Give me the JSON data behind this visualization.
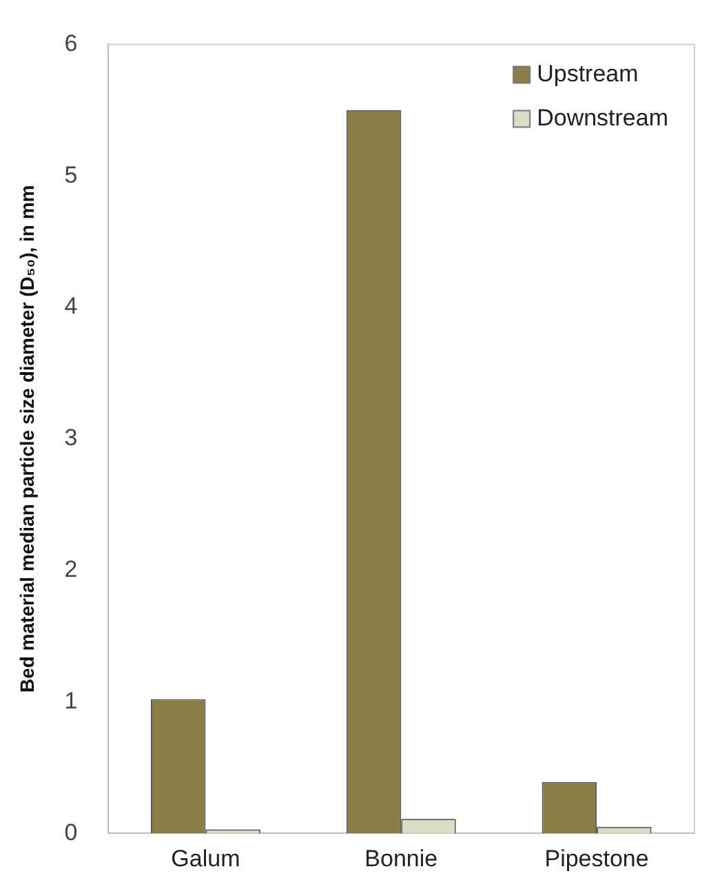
{
  "chart_data": {
    "type": "bar",
    "ylabel": "Bed material median particle size diameter (D₅₀), in mm",
    "categories": [
      "Galum",
      "Bonnie",
      "Pipestone"
    ],
    "series": [
      {
        "name": "Upstream",
        "color": "#8b7f45",
        "values": [
          1.02,
          5.5,
          0.39
        ]
      },
      {
        "name": "Downstream",
        "color": "#dcdcc4",
        "values": [
          0.03,
          0.11,
          0.05
        ]
      }
    ],
    "ylim": [
      0,
      6
    ],
    "yticks": [
      0,
      1,
      2,
      3,
      4,
      5,
      6
    ],
    "grid": false,
    "legend": "top right"
  }
}
